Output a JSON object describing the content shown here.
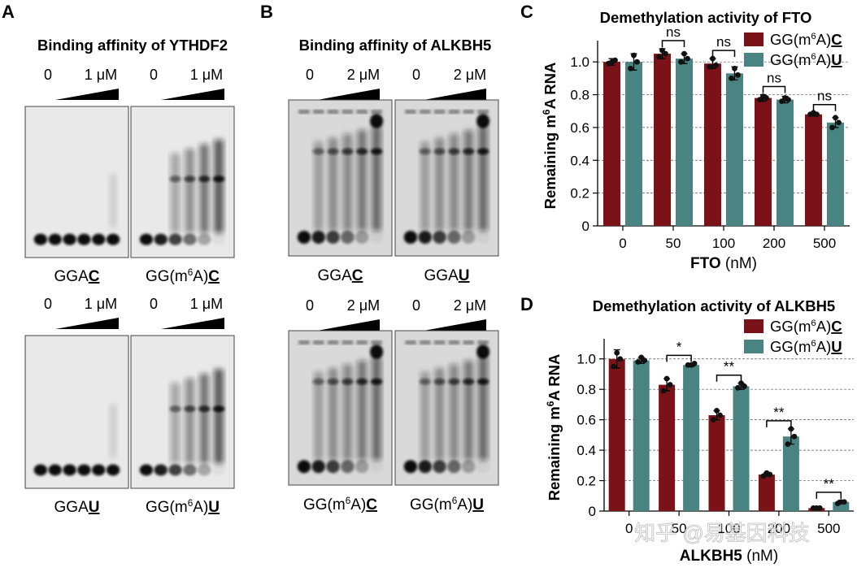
{
  "panels": {
    "A": {
      "letter": "A",
      "title": "Binding affinity of YTHDF2",
      "gels": [
        {
          "conc_low": "0",
          "conc_high": "1 μM",
          "label_prefix": "GGA",
          "label_sup": "",
          "label_suffix": "",
          "label_underlined": "C",
          "shifted": false
        },
        {
          "conc_low": "0",
          "conc_high": "1 μM",
          "label_prefix": "GG(m",
          "label_sup": "6",
          "label_suffix": "A)",
          "label_underlined": "C",
          "shifted": true
        },
        {
          "conc_low": "0",
          "conc_high": "1 μM",
          "label_prefix": "GGA",
          "label_sup": "",
          "label_suffix": "",
          "label_underlined": "U",
          "shifted": false
        },
        {
          "conc_low": "0",
          "conc_high": "1 μM",
          "label_prefix": "GG(m",
          "label_sup": "6",
          "label_suffix": "A)",
          "label_underlined": "U",
          "shifted": true
        }
      ]
    },
    "B": {
      "letter": "B",
      "title": "Binding affinity of ALKBH5",
      "gels": [
        {
          "conc_low": "0",
          "conc_high": "2 μM",
          "label_prefix": "GGA",
          "label_sup": "",
          "label_suffix": "",
          "label_underlined": "C"
        },
        {
          "conc_low": "0",
          "conc_high": "2 μM",
          "label_prefix": "GGA",
          "label_sup": "",
          "label_suffix": "",
          "label_underlined": "U"
        },
        {
          "conc_low": "0",
          "conc_high": "2 μM",
          "label_prefix": "GG(m",
          "label_sup": "6",
          "label_suffix": "A)",
          "label_underlined": "C"
        },
        {
          "conc_low": "0",
          "conc_high": "2 μM",
          "label_prefix": "GG(m",
          "label_sup": "6",
          "label_suffix": "A)",
          "label_underlined": "U"
        }
      ]
    }
  },
  "chart_data": [
    {
      "panel": "C",
      "type": "bar",
      "title": "Demethylation activity of FTO",
      "xlabel_bold": "FTO",
      "xlabel_unit": " (nM)",
      "ylabel_prefix": "Remaining m",
      "ylabel_sup": "6",
      "ylabel_suffix": "A RNA",
      "categories": [
        "0",
        "50",
        "100",
        "200",
        "500"
      ],
      "ylim": [
        0,
        1.1
      ],
      "yticks": [
        "0",
        "0.2",
        "0.4",
        "0.6",
        "0.8",
        "1.0"
      ],
      "grid": "horizontal dashed",
      "legend": "top-right",
      "series": [
        {
          "name_prefix": "GG(m",
          "name_sup": "6",
          "name_suffix": "A)",
          "name_underlined": "C",
          "color": "#7a1218",
          "values": [
            1.0,
            1.05,
            0.99,
            0.78,
            0.68
          ],
          "err": [
            0.02,
            0.03,
            0.03,
            0.02,
            0.01
          ],
          "points": [
            [
              0.99,
              1.0,
              1.01
            ],
            [
              1.03,
              1.07,
              1.05
            ],
            [
              0.97,
              1.02,
              0.98
            ],
            [
              0.77,
              0.79,
              0.78
            ],
            [
              0.68,
              0.69,
              0.68
            ]
          ]
        },
        {
          "name_prefix": "GG(m",
          "name_sup": "6",
          "name_suffix": "A)",
          "name_underlined": "U",
          "color": "#4a8482",
          "values": [
            1.0,
            1.02,
            0.93,
            0.77,
            0.63
          ],
          "err": [
            0.05,
            0.03,
            0.04,
            0.02,
            0.03
          ],
          "points": [
            [
              0.96,
              1.04,
              1.0
            ],
            [
              1.0,
              1.05,
              1.02
            ],
            [
              0.9,
              0.96,
              0.92
            ],
            [
              0.76,
              0.78,
              0.77
            ],
            [
              0.6,
              0.66,
              0.63
            ]
          ]
        }
      ],
      "significance": [
        "ns",
        "ns",
        "ns",
        "ns"
      ],
      "significance_categories": [
        1,
        2,
        3,
        4
      ]
    },
    {
      "panel": "D",
      "type": "bar",
      "title": "Demethylation activity of ALKBH5",
      "xlabel_bold": "ALKBH5",
      "xlabel_unit": " (nM)",
      "ylabel_prefix": "Remaining m",
      "ylabel_sup": "6",
      "ylabel_suffix": "A RNA",
      "categories": [
        "0",
        "50",
        "100",
        "200",
        "500"
      ],
      "ylim": [
        0,
        1.1
      ],
      "yticks": [
        "0",
        "0.2",
        "0.4",
        "0.6",
        "0.8",
        "1.0"
      ],
      "grid": "horizontal dashed",
      "legend": "top-right",
      "series": [
        {
          "name_prefix": "GG(m",
          "name_sup": "6",
          "name_suffix": "A)",
          "name_underlined": "C",
          "color": "#7a1218",
          "values": [
            1.0,
            0.83,
            0.63,
            0.24,
            0.02
          ],
          "err": [
            0.06,
            0.04,
            0.03,
            0.01,
            0.005
          ],
          "points": [
            [
              0.95,
              1.04,
              1.0
            ],
            [
              0.79,
              0.87,
              0.83
            ],
            [
              0.6,
              0.66,
              0.63
            ],
            [
              0.23,
              0.25,
              0.24
            ],
            [
              0.02,
              0.02,
              0.02
            ]
          ]
        },
        {
          "name_prefix": "GG(m",
          "name_sup": "6",
          "name_suffix": "A)",
          "name_underlined": "U",
          "color": "#4a8482",
          "values": [
            0.99,
            0.96,
            0.82,
            0.49,
            0.06
          ],
          "err": [
            0.02,
            0.01,
            0.02,
            0.05,
            0.01
          ],
          "points": [
            [
              0.98,
              1.01,
              0.99
            ],
            [
              0.96,
              0.96,
              0.97
            ],
            [
              0.81,
              0.84,
              0.82
            ],
            [
              0.44,
              0.54,
              0.49
            ],
            [
              0.05,
              0.06,
              0.06
            ]
          ]
        }
      ],
      "significance": [
        "*",
        "**",
        "**",
        "**"
      ],
      "significance_categories": [
        1,
        2,
        3,
        4
      ]
    }
  ],
  "watermark": "知乎 @易基因科技"
}
